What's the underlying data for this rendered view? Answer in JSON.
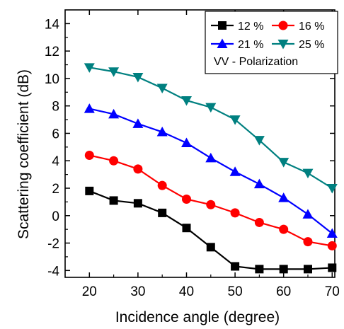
{
  "chart_data": {
    "type": "line",
    "title": "",
    "xlabel": "Incidence angle (degree)",
    "ylabel": "Scattering coefficient (dB)",
    "xlim": [
      15,
      72
    ],
    "ylim": [
      -4.5,
      15
    ],
    "xticks": [
      20,
      30,
      40,
      50,
      60,
      70
    ],
    "yticks": [
      -4,
      -2,
      0,
      2,
      4,
      6,
      8,
      10,
      12,
      14
    ],
    "grid": false,
    "legend_position": "top-right",
    "x": [
      20,
      25,
      30,
      35,
      40,
      45,
      50,
      55,
      60,
      65,
      70
    ],
    "series": [
      {
        "name": "12 %",
        "color": "#000000",
        "marker": "square",
        "values": [
          1.8,
          1.1,
          0.9,
          0.2,
          -0.9,
          -2.3,
          -3.7,
          -3.9,
          -3.9,
          -3.9,
          -3.8
        ]
      },
      {
        "name": "16 %",
        "color": "#ff0000",
        "marker": "circle",
        "values": [
          4.4,
          4.0,
          3.4,
          2.2,
          1.2,
          0.8,
          0.2,
          -0.5,
          -1.0,
          -1.9,
          -2.2
        ]
      },
      {
        "name": "21 %",
        "color": "#0000ff",
        "marker": "triangle-up",
        "values": [
          7.8,
          7.4,
          6.7,
          6.1,
          5.3,
          4.2,
          3.2,
          2.3,
          1.3,
          0.1,
          -1.3
        ]
      },
      {
        "name": "25 %",
        "color": "#008080",
        "marker": "triangle-down",
        "values": [
          10.8,
          10.5,
          10.1,
          9.3,
          8.4,
          7.9,
          7.0,
          5.5,
          3.9,
          3.1,
          2.0
        ]
      }
    ],
    "annotation": "VV - Polarization"
  }
}
